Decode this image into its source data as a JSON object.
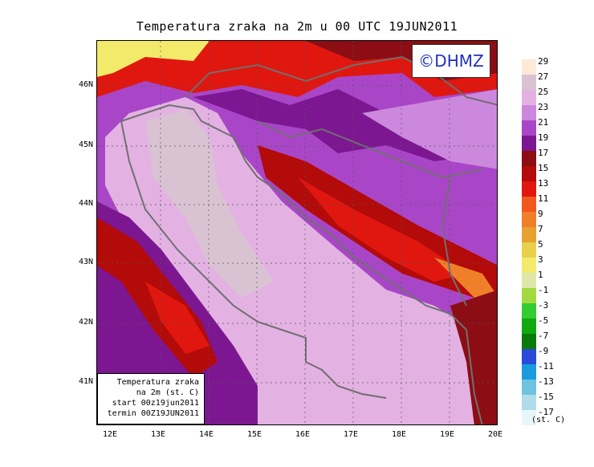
{
  "title": "Temperatura zraka na 2m u 00 UTC 19JUN2011",
  "logo_text": "©DHMZ",
  "info": {
    "line1": "Temperatura zraka",
    "line2": "na 2m (st. C)",
    "line3": "start 00z19jun2011",
    "line4": "termin 00Z19JUN2011"
  },
  "lat_labels": [
    "46N",
    "45N",
    "44N",
    "43N",
    "42N",
    "41N"
  ],
  "lon_labels": [
    "12E",
    "13E",
    "14E",
    "15E",
    "16E",
    "17E",
    "18E",
    "19E",
    "20E"
  ],
  "legend": {
    "unit": "(st. C)",
    "labels": [
      "29",
      "27",
      "25",
      "23",
      "21",
      "19",
      "17",
      "15",
      "13",
      "11",
      "9",
      "7",
      "5",
      "3",
      "1",
      "-1",
      "-3",
      "-5",
      "-7",
      "-9",
      "-11",
      "-13",
      "-15",
      "-17"
    ],
    "colors": [
      "#fde9d6",
      "#d9c3d2",
      "#e3b2e3",
      "#cc88dd",
      "#a946c8",
      "#7c1791",
      "#8c0d14",
      "#b30a0a",
      "#e0170f",
      "#f2581e",
      "#f07f2a",
      "#e8a030",
      "#e9d04a",
      "#f3ea6c",
      "#dde8a8",
      "#a3d940",
      "#33cc33",
      "#10aa10",
      "#0a7a0a",
      "#2a4bd7",
      "#1a9be0",
      "#6fc3e0",
      "#b0dcea",
      "#e8f6fb"
    ]
  }
}
